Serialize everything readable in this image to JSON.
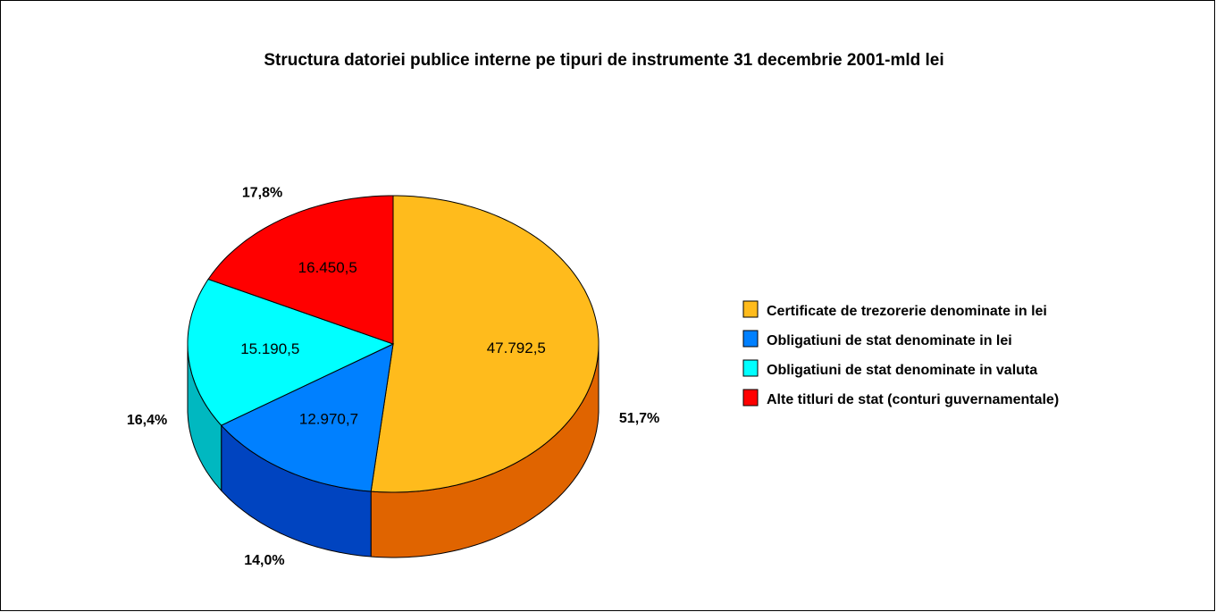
{
  "chart_data": {
    "type": "pie",
    "title": "Structura datoriei publice interne pe tipuri de instrumente 31 decembrie 2001-mld lei",
    "categories": [
      "Certificate de trezorerie denominate in lei",
      "Obligatiuni de stat denominate in lei",
      "Obligatiuni de stat denominate in valuta",
      "Alte titluri de stat (conturi guvernamentale)"
    ],
    "values": [
      47792.5,
      12970.7,
      15190.5,
      16450.5
    ],
    "value_labels": [
      "47.792,5",
      "12.970,7",
      "15.190,5",
      "16.450,5"
    ],
    "percent_labels": [
      "51,7%",
      "14,0%",
      "16,4%",
      "17,8%"
    ],
    "colors": [
      "#ffbb1c",
      "#0080ff",
      "#00ffff",
      "#ff0000"
    ],
    "side_colors": [
      "#e06400",
      "#0044c0",
      "#00b8c0",
      "#c00000"
    ],
    "legend": "right"
  }
}
